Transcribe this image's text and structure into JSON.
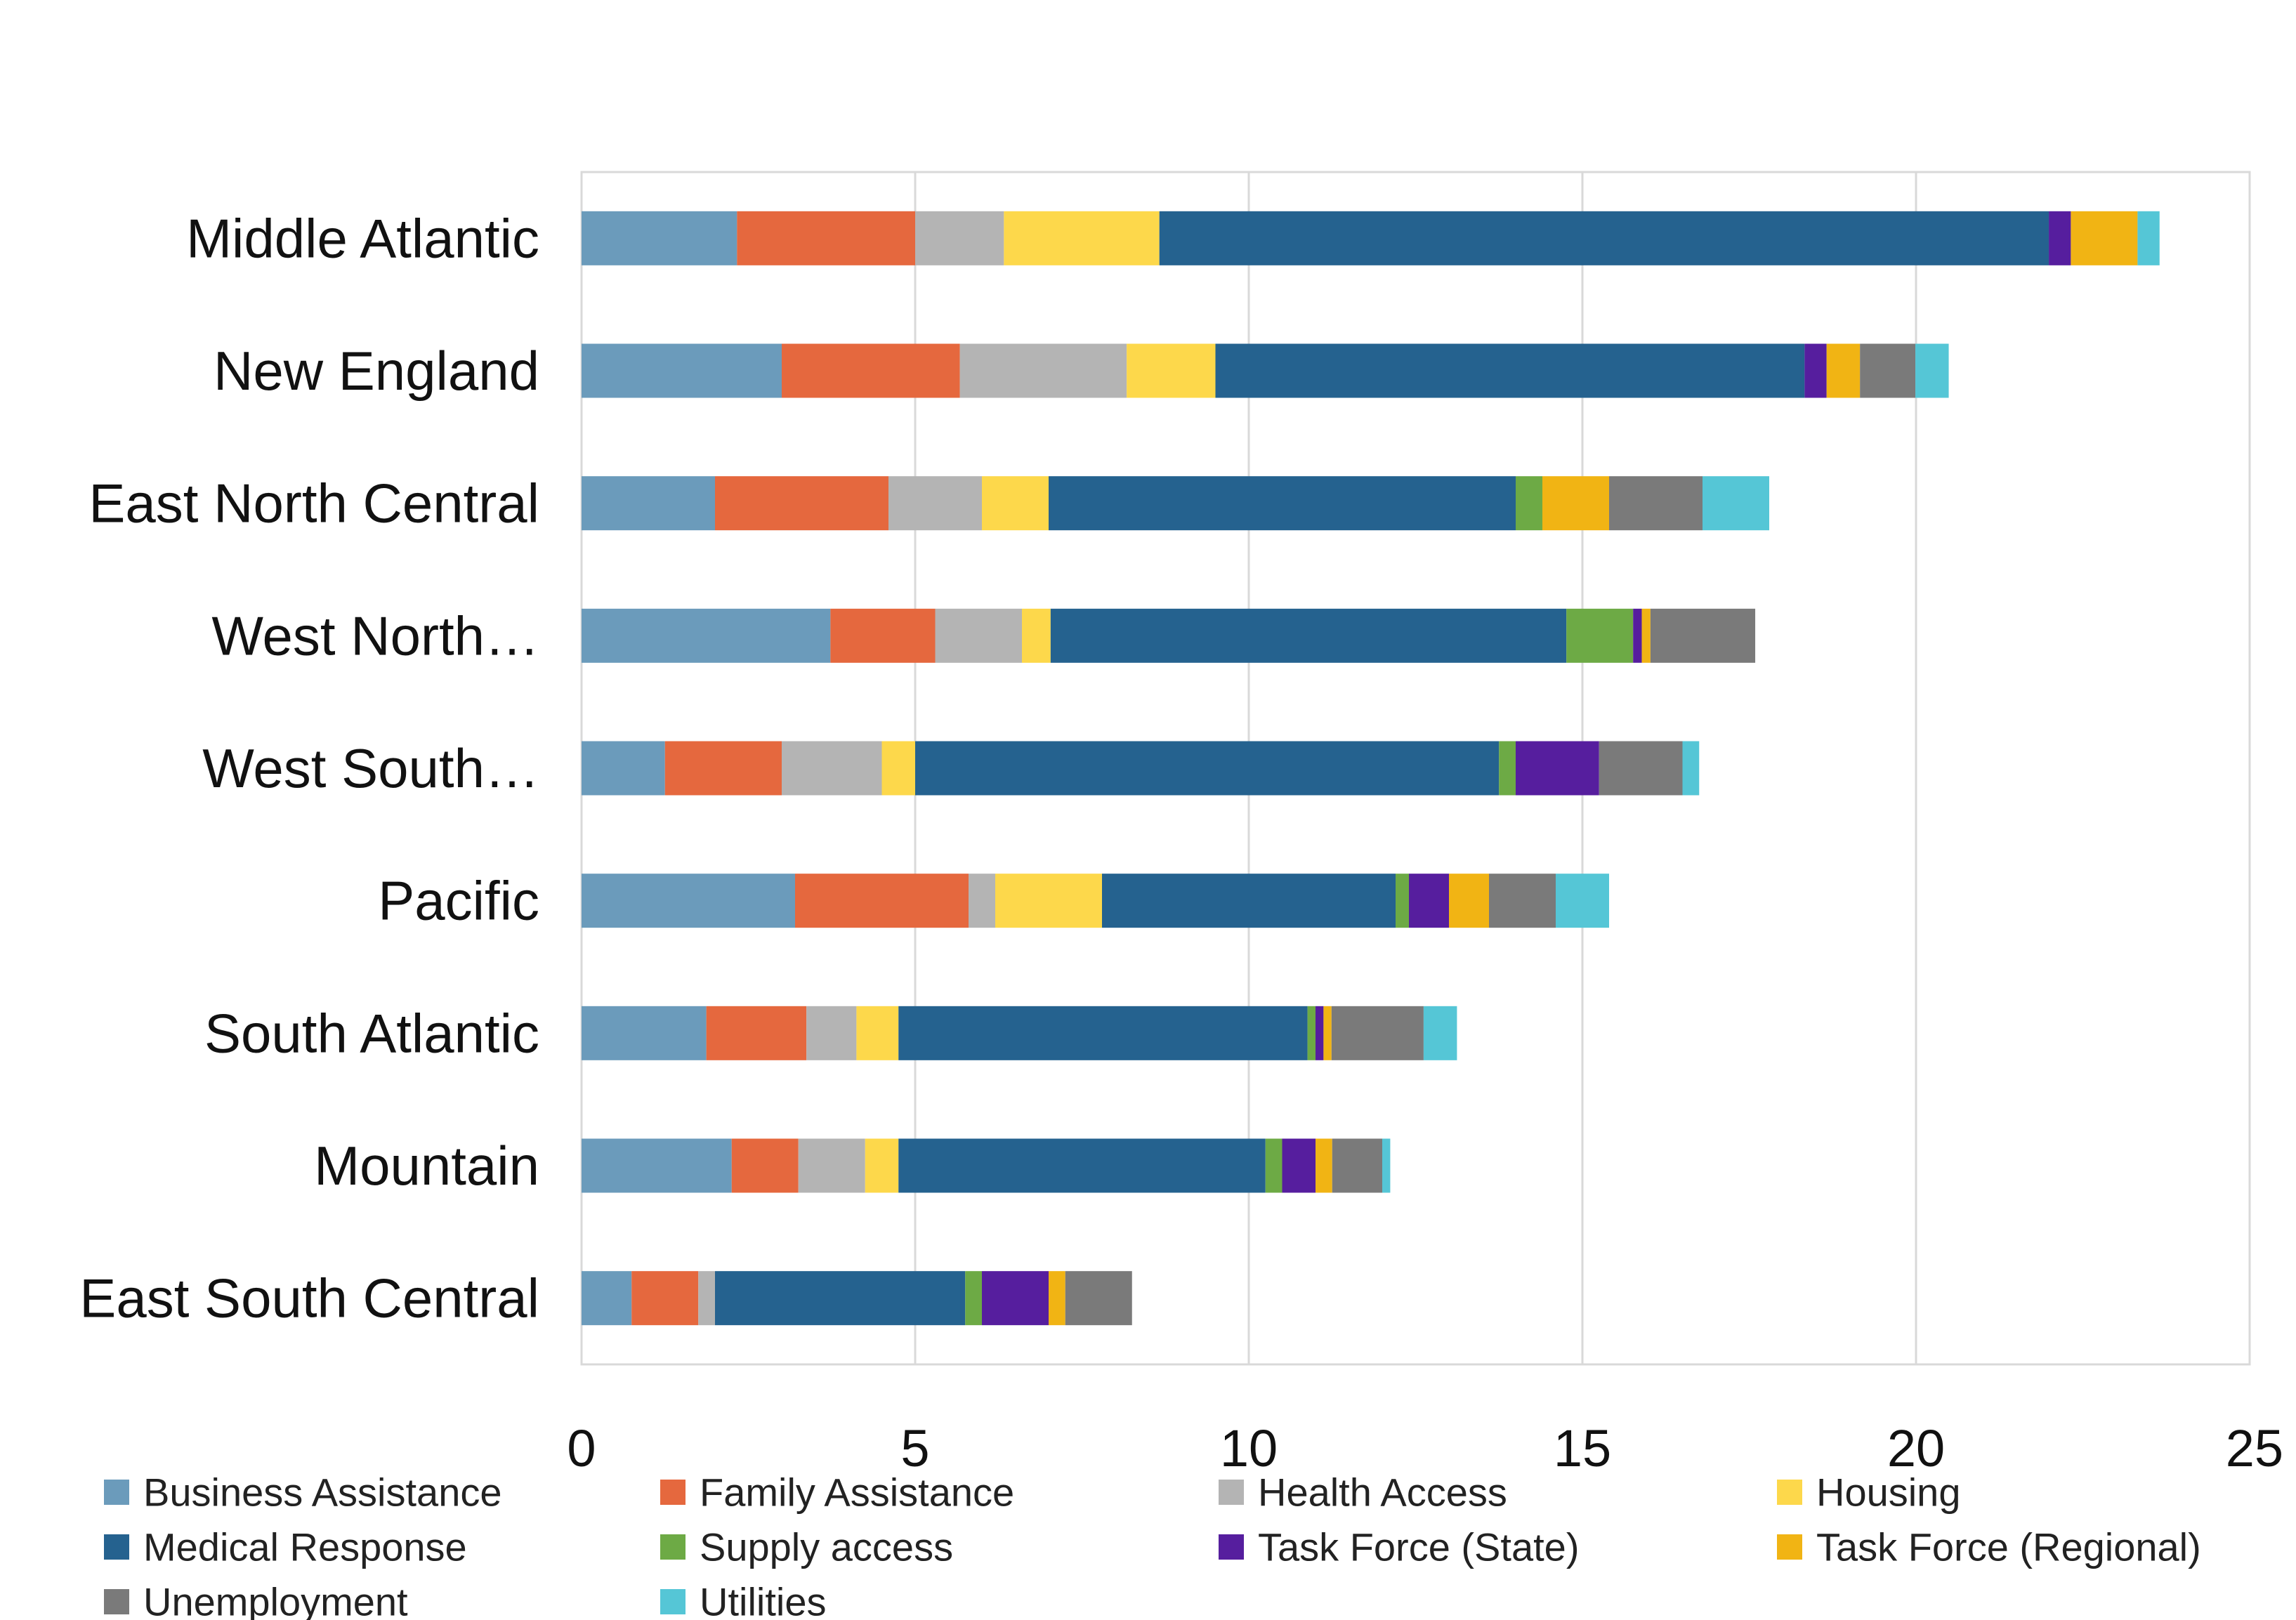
{
  "chart_data": {
    "type": "bar",
    "orientation": "horizontal",
    "stacked": true,
    "title": "",
    "xlabel": "",
    "ylabel": "",
    "xlim": [
      0,
      25
    ],
    "xticks": [
      0,
      5,
      10,
      15,
      20,
      25
    ],
    "grid": "vertical major gridlines",
    "legend_position": "bottom",
    "categories": [
      "Middle Atlantic",
      "New England",
      "East North Central",
      "West North…",
      "West South…",
      "Pacific",
      "South Atlantic",
      "Mountain",
      "East South Central"
    ],
    "series": [
      {
        "name": "Business Assistance",
        "color": "#6B9BBB",
        "values": [
          2.33,
          3.0,
          2.0,
          3.73,
          1.25,
          3.2,
          1.87,
          2.25,
          0.75
        ]
      },
      {
        "name": "Family Assistance",
        "color": "#E5683E",
        "values": [
          2.67,
          2.67,
          2.6,
          1.57,
          1.75,
          2.6,
          1.5,
          1.0,
          1.0
        ]
      },
      {
        "name": "Health Access",
        "color": "#B4B4B4",
        "values": [
          1.33,
          2.5,
          1.4,
          1.3,
          1.5,
          0.4,
          0.75,
          1.0,
          0.25
        ]
      },
      {
        "name": "Housing",
        "color": "#FDD84B",
        "values": [
          2.33,
          1.33,
          1.0,
          0.43,
          0.5,
          1.6,
          0.63,
          0.5,
          0
        ]
      },
      {
        "name": "Medical Response",
        "color": "#25628F",
        "values": [
          13.33,
          8.83,
          7.0,
          7.73,
          8.75,
          4.4,
          6.13,
          5.5,
          3.75
        ]
      },
      {
        "name": "Supply access",
        "color": "#6DAA45",
        "values": [
          0,
          0,
          0.4,
          1.0,
          0.25,
          0.2,
          0.12,
          0.25,
          0.25
        ]
      },
      {
        "name": "Task Force (State)",
        "color": "#561E9E",
        "values": [
          0.33,
          0.33,
          0,
          0.13,
          1.25,
          0.6,
          0.12,
          0.5,
          1.0
        ]
      },
      {
        "name": "Task Force (Regional)",
        "color": "#F1B414",
        "values": [
          1.0,
          0.5,
          1.0,
          0.13,
          0,
          0.6,
          0.12,
          0.25,
          0.25
        ]
      },
      {
        "name": "Unemployment",
        "color": "#7A7A7A",
        "values": [
          0,
          0.83,
          1.4,
          1.57,
          1.25,
          1.0,
          1.38,
          0.75,
          1.0
        ]
      },
      {
        "name": "Utilities",
        "color": "#55C6D6",
        "values": [
          0.33,
          0.5,
          1.0,
          0,
          0.25,
          0.8,
          0.5,
          0.12,
          0
        ]
      }
    ]
  }
}
